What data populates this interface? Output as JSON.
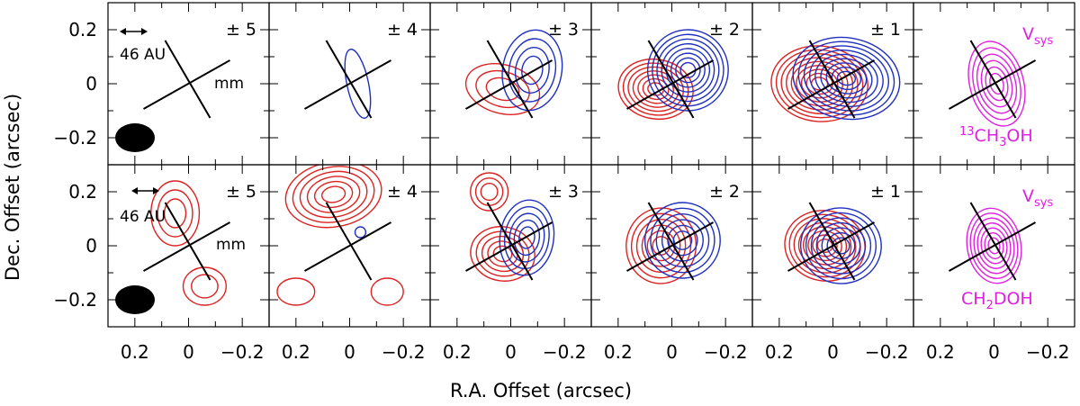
{
  "chart_data": {
    "type": "contour",
    "xlabel": "R.A. Offset (arcsec)",
    "ylabel": "Dec. Offset (arcsec)",
    "xlim": [
      0.3,
      -0.3
    ],
    "ylim": [
      -0.3,
      0.3
    ],
    "xticks": [
      0.2,
      0,
      -0.2
    ],
    "yticks": [
      0.2,
      0,
      -0.2
    ],
    "x_tick_labels": [
      "0.2",
      "0",
      "−0.2"
    ],
    "y_tick_labels": [
      "0.2",
      "0",
      "−0.2"
    ],
    "grid": false,
    "colors": {
      "red": "#dd2222",
      "blue": "#1f2fbf",
      "magenta": "#e020e0",
      "black": "#000000"
    },
    "scale_bar_label": "46 AU",
    "mm_label": "mm",
    "vsys_label": "V",
    "vsys_sub": "sys",
    "rows": [
      {
        "molecule": {
          "pre": "13",
          "a": "CH",
          "sub": "3",
          "b": "OH"
        },
        "panels": [
          {
            "label": "± 5",
            "red": [],
            "blue": []
          },
          {
            "label": "± 4",
            "red": [],
            "blue": [
              {
                "cx": -0.03,
                "cy": 0.0,
                "rx": 0.04,
                "ry": 0.13,
                "rot": -12,
                "levels": 1
              }
            ]
          },
          {
            "label": "± 3",
            "red": [
              {
                "cx": 0.03,
                "cy": -0.02,
                "rx": 0.14,
                "ry": 0.09,
                "rot": 15,
                "levels": 3
              }
            ],
            "blue": [
              {
                "cx": -0.08,
                "cy": 0.05,
                "rx": 0.11,
                "ry": 0.15,
                "rot": 10,
                "levels": 4
              }
            ]
          },
          {
            "label": "± 2",
            "red": [
              {
                "cx": 0.06,
                "cy": -0.02,
                "rx": 0.14,
                "ry": 0.11,
                "rot": 10,
                "levels": 7
              }
            ],
            "blue": [
              {
                "cx": -0.06,
                "cy": 0.05,
                "rx": 0.15,
                "ry": 0.15,
                "rot": 15,
                "levels": 8
              }
            ]
          },
          {
            "label": "± 1",
            "red": [
              {
                "cx": 0.05,
                "cy": 0.0,
                "rx": 0.18,
                "ry": 0.14,
                "rot": 5,
                "levels": 9
              }
            ],
            "blue": [
              {
                "cx": -0.05,
                "cy": 0.02,
                "rx": 0.2,
                "ry": 0.15,
                "rot": 10,
                "levels": 9
              }
            ]
          },
          {
            "label": "",
            "magenta": [
              {
                "cx": -0.01,
                "cy": 0.0,
                "rx": 0.1,
                "ry": 0.16,
                "rot": -15,
                "levels": 6
              }
            ]
          }
        ]
      },
      {
        "molecule": {
          "pre": "",
          "a": "CH",
          "sub": "2",
          "b": "DOH"
        },
        "panels": [
          {
            "label": "± 5",
            "red": [
              {
                "cx": 0.05,
                "cy": 0.12,
                "rx": 0.09,
                "ry": 0.12,
                "rot": 0,
                "levels": 3
              },
              {
                "cx": -0.06,
                "cy": -0.15,
                "rx": 0.08,
                "ry": 0.07,
                "rot": 0,
                "levels": 2
              }
            ],
            "blue": []
          },
          {
            "label": "± 4",
            "red": [
              {
                "cx": 0.06,
                "cy": 0.19,
                "rx": 0.18,
                "ry": 0.12,
                "rot": -10,
                "levels": 6
              },
              {
                "cx": 0.2,
                "cy": -0.17,
                "rx": 0.07,
                "ry": 0.05,
                "rot": 0,
                "levels": 1
              },
              {
                "cx": -0.14,
                "cy": -0.17,
                "rx": 0.06,
                "ry": 0.05,
                "rot": 0,
                "levels": 1
              }
            ],
            "blue": [
              {
                "cx": -0.04,
                "cy": 0.05,
                "rx": 0.02,
                "ry": 0.02,
                "rot": 0,
                "levels": 1
              }
            ]
          },
          {
            "label": "± 3",
            "red": [
              {
                "cx": 0.03,
                "cy": -0.03,
                "rx": 0.12,
                "ry": 0.1,
                "rot": 10,
                "levels": 5
              },
              {
                "cx": 0.08,
                "cy": 0.2,
                "rx": 0.07,
                "ry": 0.07,
                "rot": 0,
                "levels": 3
              }
            ],
            "blue": [
              {
                "cx": -0.06,
                "cy": 0.03,
                "rx": 0.1,
                "ry": 0.14,
                "rot": 8,
                "levels": 5
              }
            ]
          },
          {
            "label": "± 2",
            "red": [
              {
                "cx": 0.04,
                "cy": 0.0,
                "rx": 0.13,
                "ry": 0.14,
                "rot": 5,
                "levels": 6
              }
            ],
            "blue": [
              {
                "cx": -0.04,
                "cy": 0.02,
                "rx": 0.14,
                "ry": 0.14,
                "rot": 8,
                "levels": 6
              }
            ]
          },
          {
            "label": "± 1",
            "red": [
              {
                "cx": 0.03,
                "cy": 0.0,
                "rx": 0.15,
                "ry": 0.13,
                "rot": 10,
                "levels": 8
              }
            ],
            "blue": [
              {
                "cx": -0.03,
                "cy": 0.0,
                "rx": 0.15,
                "ry": 0.14,
                "rot": 5,
                "levels": 7
              }
            ]
          },
          {
            "label": "",
            "magenta": [
              {
                "cx": 0.0,
                "cy": 0.0,
                "rx": 0.1,
                "ry": 0.14,
                "rot": -10,
                "levels": 7
              }
            ]
          }
        ]
      }
    ]
  }
}
